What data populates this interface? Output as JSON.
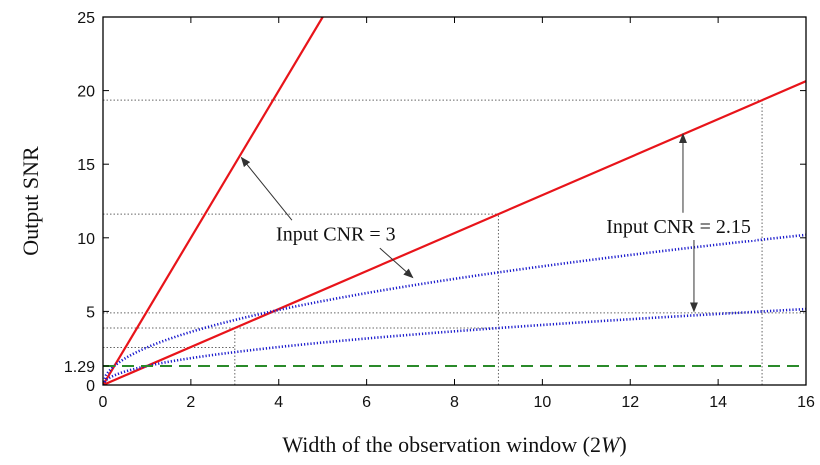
{
  "chart_data": {
    "type": "line",
    "xlabel_prefix": "Width of the observation window (2",
    "xlabel_var": "W",
    "xlabel_suffix": ")",
    "ylabel": "Output SNR",
    "xlim": [
      0,
      16
    ],
    "ylim": [
      0,
      25
    ],
    "x_ticks": [
      0,
      2,
      4,
      6,
      8,
      10,
      12,
      14,
      16
    ],
    "y_ticks": [
      0,
      5,
      10,
      15,
      20,
      25
    ],
    "y_extra_ticks": [
      1.29
    ],
    "grid": false,
    "series": [
      {
        "color": "#e8141a",
        "style": "solid",
        "kind": "linear",
        "slope": 5.0,
        "x": [
          0,
          5
        ]
      },
      {
        "color": "#e8141a",
        "style": "solid",
        "kind": "linear",
        "slope": 1.29,
        "x": [
          0,
          16
        ]
      },
      {
        "color": "#1a1acc",
        "style": "dotted",
        "kind": "sqrt",
        "coef": 2.55,
        "x": [
          0,
          16
        ]
      },
      {
        "color": "#1a1acc",
        "style": "dotted",
        "kind": "sqrt",
        "coef": 1.29,
        "x": [
          0,
          16
        ]
      },
      {
        "color": "#2a8a2a",
        "style": "dashed",
        "kind": "constant",
        "value": 1.29,
        "x": [
          0,
          16
        ]
      }
    ],
    "reference_lines": {
      "vertical": [
        {
          "x": 3,
          "y_top": 3.87
        },
        {
          "x": 9,
          "y_top": 11.61
        },
        {
          "x": 15,
          "y_top": 19.35
        }
      ],
      "horizontal": [
        {
          "y": 19.35,
          "x_end": 15
        },
        {
          "y": 11.61,
          "x_end": 9
        },
        {
          "y": 4.9,
          "x_end": 16
        },
        {
          "y": 3.87,
          "x_end": 9
        },
        {
          "y": 2.55,
          "x_end": 3
        }
      ]
    },
    "annotations": [
      {
        "text": "Input CNR = 3",
        "label_pos": [
          5.3,
          10.3
        ],
        "arrows": [
          {
            "from": [
              4.3,
              11.2
            ],
            "to": [
              3.15,
              15.45
            ]
          },
          {
            "from": [
              6.3,
              9.3
            ],
            "to": [
              7.05,
              7.3
            ]
          }
        ]
      },
      {
        "text": "Input CNR = 2.15",
        "label_pos": [
          13.1,
          10.8
        ],
        "arrows": [
          {
            "from": [
              13.2,
              11.7
            ],
            "to": [
              13.2,
              17.05
            ]
          },
          {
            "from": [
              13.45,
              9.9
            ],
            "to": [
              13.45,
              5.0
            ]
          }
        ]
      }
    ]
  }
}
